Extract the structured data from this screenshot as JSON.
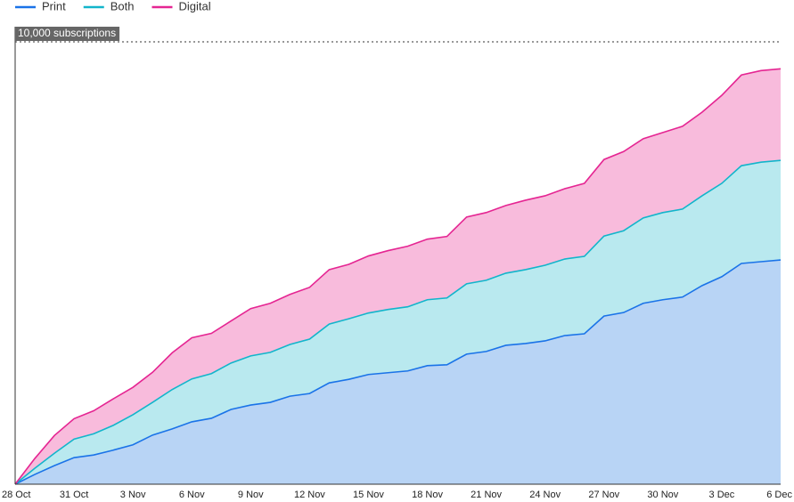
{
  "chart_data": {
    "type": "stacked-area",
    "categories": [
      "28 Oct",
      null,
      null,
      "31 Oct",
      null,
      null,
      "3 Nov",
      null,
      null,
      "6 Nov",
      null,
      null,
      "9 Nov",
      null,
      null,
      "12 Nov",
      null,
      null,
      "15 Nov",
      null,
      null,
      "18 Nov",
      null,
      null,
      "21 Nov",
      null,
      null,
      "24 Nov",
      null,
      null,
      "27 Nov",
      null,
      null,
      "30 Nov",
      null,
      null,
      "3 Dec",
      null,
      null,
      "6 Dec"
    ],
    "series": [
      {
        "name": "Print",
        "color": "#1a73e8",
        "fill": "#b8d4f5",
        "values": [
          0,
          220,
          420,
          600,
          660,
          770,
          890,
          1110,
          1250,
          1410,
          1490,
          1690,
          1790,
          1850,
          1990,
          2050,
          2290,
          2370,
          2480,
          2520,
          2560,
          2680,
          2700,
          2940,
          3000,
          3140,
          3180,
          3240,
          3360,
          3400,
          3800,
          3880,
          4090,
          4170,
          4230,
          4490,
          4690,
          4990,
          5030,
          5070
        ]
      },
      {
        "name": "Both",
        "color": "#12b5cb",
        "fill": "#b9e9ef",
        "values": [
          0,
          140,
          280,
          420,
          480,
          560,
          680,
          740,
          890,
          970,
          1010,
          1050,
          1110,
          1130,
          1170,
          1230,
          1330,
          1370,
          1390,
          1430,
          1450,
          1490,
          1510,
          1590,
          1610,
          1630,
          1670,
          1710,
          1730,
          1750,
          1810,
          1850,
          1930,
          1970,
          1990,
          2030,
          2110,
          2210,
          2250,
          2250
        ]
      },
      {
        "name": "Digital",
        "color": "#e52592",
        "fill": "#f8bbdc",
        "values": [
          0,
          220,
          400,
          460,
          520,
          600,
          620,
          680,
          830,
          930,
          910,
          950,
          1070,
          1110,
          1130,
          1170,
          1230,
          1230,
          1290,
          1330,
          1370,
          1370,
          1390,
          1510,
          1530,
          1530,
          1570,
          1570,
          1590,
          1650,
          1730,
          1790,
          1790,
          1810,
          1870,
          1890,
          1990,
          2050,
          2070,
          2070
        ]
      }
    ],
    "ylim": [
      0,
      10000
    ],
    "yticks": [
      {
        "value": 10000,
        "label": "10,000 subscriptions"
      }
    ]
  }
}
